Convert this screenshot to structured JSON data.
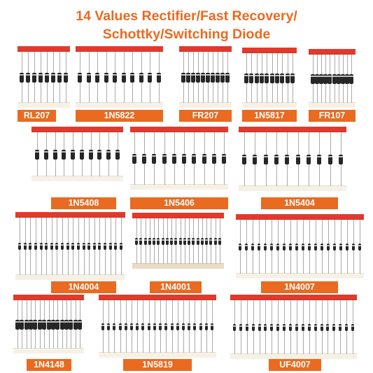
{
  "title": {
    "line1": "14 Values Rectifier/Fast Recovery/",
    "line2": "Schottky/Switching Diode"
  },
  "colors": {
    "accent": "#ea6a1f",
    "tape_red": "#e3392d",
    "label_text": "#ffffff",
    "diode_body": "#262626"
  },
  "products": [
    {
      "label": "RL207",
      "diodes": 8
    },
    {
      "label": "1N5822",
      "diodes": 10
    },
    {
      "label": "FR207",
      "diodes": 10
    },
    {
      "label": "1N5817",
      "diodes": 10
    },
    {
      "label": "FR107",
      "diodes": 10
    },
    {
      "label": "1N5408",
      "diodes": 10
    },
    {
      "label": "1N5406",
      "diodes": 10
    },
    {
      "label": "1N5404",
      "diodes": 10
    },
    {
      "label": "1N4004",
      "diodes": 20
    },
    {
      "label": "1N4001",
      "diodes": 20
    },
    {
      "label": "1N4007",
      "diodes": 20
    },
    {
      "label": "1N4148",
      "diodes": 15
    },
    {
      "label": "1N5819",
      "diodes": 20
    },
    {
      "label": "UF4007",
      "diodes": 20
    }
  ]
}
